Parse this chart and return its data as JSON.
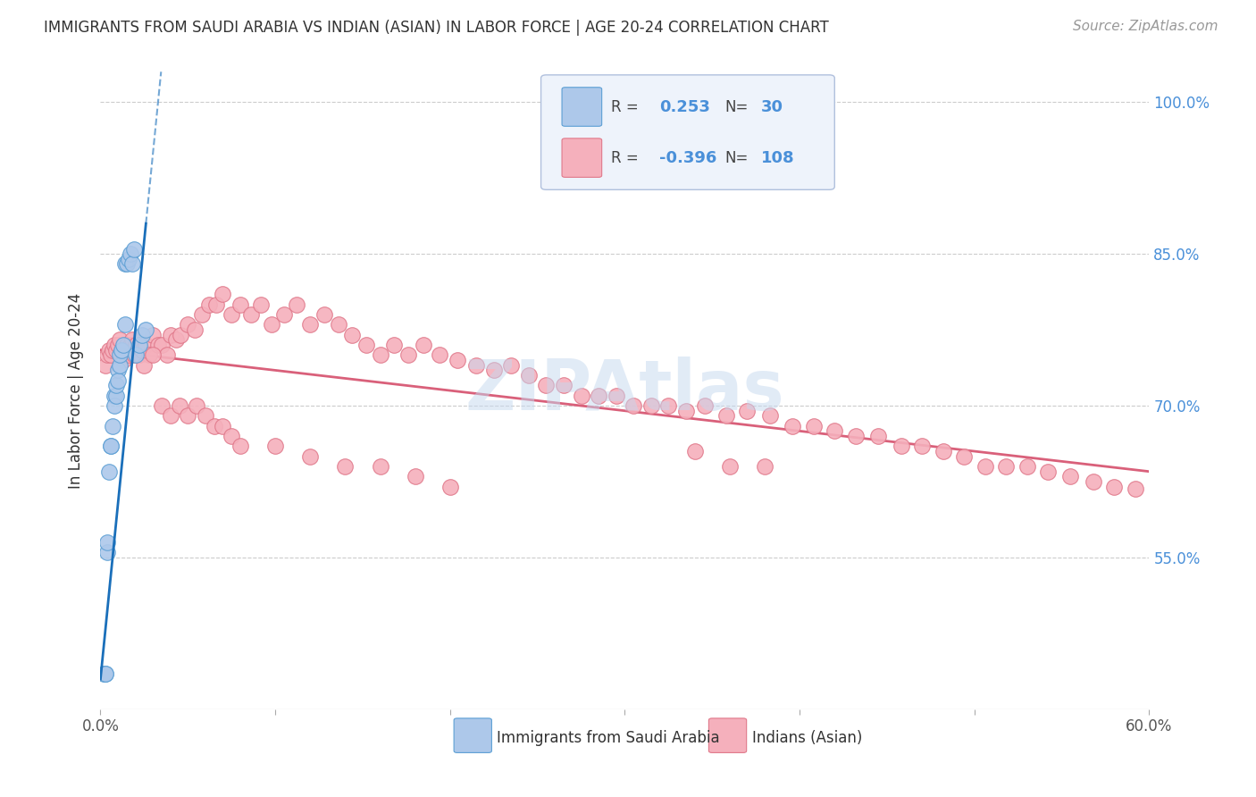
{
  "title": "IMMIGRANTS FROM SAUDI ARABIA VS INDIAN (ASIAN) IN LABOR FORCE | AGE 20-24 CORRELATION CHART",
  "source": "Source: ZipAtlas.com",
  "ylabel": "In Labor Force | Age 20-24",
  "xlim": [
    0.0,
    0.6
  ],
  "ylim": [
    0.4,
    1.03
  ],
  "yticks": [
    0.55,
    0.7,
    0.85,
    1.0
  ],
  "ytick_labels_right": [
    "55.0%",
    "70.0%",
    "85.0%",
    "100.0%"
  ],
  "xtick_positions": [
    0.0,
    0.1,
    0.2,
    0.3,
    0.4,
    0.5,
    0.6
  ],
  "xtick_labels": [
    "0.0%",
    "",
    "",
    "",
    "",
    "",
    "60.0%"
  ],
  "saudi_R": 0.253,
  "saudi_N": 30,
  "indian_R": -0.396,
  "indian_N": 108,
  "saudi_color": "#adc8ea",
  "saudi_edge_color": "#5c9fd4",
  "indian_color": "#f5b0bc",
  "indian_edge_color": "#e0788a",
  "saudi_line_color": "#1a6fba",
  "indian_line_color": "#d9607a",
  "watermark_color": "#c5d8ef",
  "title_color": "#333333",
  "right_tick_color": "#4a90d9",
  "saudi_x": [
    0.002,
    0.003,
    0.003,
    0.004,
    0.004,
    0.005,
    0.006,
    0.006,
    0.007,
    0.008,
    0.008,
    0.009,
    0.009,
    0.01,
    0.01,
    0.011,
    0.011,
    0.012,
    0.013,
    0.014,
    0.014,
    0.015,
    0.016,
    0.017,
    0.018,
    0.019,
    0.02,
    0.022,
    0.024,
    0.026
  ],
  "saudi_y": [
    0.435,
    0.435,
    0.435,
    0.555,
    0.565,
    0.635,
    0.66,
    0.66,
    0.68,
    0.71,
    0.7,
    0.71,
    0.72,
    0.735,
    0.725,
    0.74,
    0.75,
    0.755,
    0.76,
    0.78,
    0.84,
    0.84,
    0.845,
    0.85,
    0.84,
    0.855,
    0.75,
    0.76,
    0.77,
    0.775
  ],
  "indian_x": [
    0.003,
    0.004,
    0.005,
    0.006,
    0.007,
    0.008,
    0.009,
    0.01,
    0.011,
    0.012,
    0.013,
    0.014,
    0.015,
    0.016,
    0.017,
    0.018,
    0.019,
    0.02,
    0.022,
    0.024,
    0.026,
    0.028,
    0.03,
    0.033,
    0.035,
    0.038,
    0.04,
    0.043,
    0.046,
    0.05,
    0.054,
    0.058,
    0.062,
    0.066,
    0.07,
    0.075,
    0.08,
    0.086,
    0.092,
    0.098,
    0.105,
    0.112,
    0.12,
    0.128,
    0.136,
    0.144,
    0.152,
    0.16,
    0.168,
    0.176,
    0.185,
    0.194,
    0.204,
    0.215,
    0.225,
    0.235,
    0.245,
    0.255,
    0.265,
    0.275,
    0.285,
    0.295,
    0.305,
    0.315,
    0.325,
    0.335,
    0.346,
    0.358,
    0.37,
    0.383,
    0.396,
    0.408,
    0.42,
    0.432,
    0.445,
    0.458,
    0.47,
    0.482,
    0.494,
    0.506,
    0.518,
    0.53,
    0.542,
    0.555,
    0.568,
    0.58,
    0.592,
    0.34,
    0.36,
    0.38,
    0.025,
    0.03,
    0.035,
    0.04,
    0.045,
    0.05,
    0.055,
    0.06,
    0.065,
    0.07,
    0.075,
    0.08,
    0.1,
    0.12,
    0.14,
    0.16,
    0.18,
    0.2
  ],
  "indian_y": [
    0.74,
    0.75,
    0.755,
    0.75,
    0.755,
    0.76,
    0.755,
    0.76,
    0.765,
    0.75,
    0.745,
    0.755,
    0.76,
    0.75,
    0.76,
    0.765,
    0.75,
    0.76,
    0.75,
    0.755,
    0.76,
    0.75,
    0.77,
    0.76,
    0.76,
    0.75,
    0.77,
    0.765,
    0.77,
    0.78,
    0.775,
    0.79,
    0.8,
    0.8,
    0.81,
    0.79,
    0.8,
    0.79,
    0.8,
    0.78,
    0.79,
    0.8,
    0.78,
    0.79,
    0.78,
    0.77,
    0.76,
    0.75,
    0.76,
    0.75,
    0.76,
    0.75,
    0.745,
    0.74,
    0.735,
    0.74,
    0.73,
    0.72,
    0.72,
    0.71,
    0.71,
    0.71,
    0.7,
    0.7,
    0.7,
    0.695,
    0.7,
    0.69,
    0.695,
    0.69,
    0.68,
    0.68,
    0.675,
    0.67,
    0.67,
    0.66,
    0.66,
    0.655,
    0.65,
    0.64,
    0.64,
    0.64,
    0.635,
    0.63,
    0.625,
    0.62,
    0.618,
    0.655,
    0.64,
    0.64,
    0.74,
    0.75,
    0.7,
    0.69,
    0.7,
    0.69,
    0.7,
    0.69,
    0.68,
    0.68,
    0.67,
    0.66,
    0.66,
    0.65,
    0.64,
    0.64,
    0.63,
    0.62
  ],
  "saudi_line_x": [
    0.0,
    0.026
  ],
  "saudi_line_y_at_0": 0.43,
  "saudi_line_y_at_026": 0.88,
  "indian_line_x": [
    0.0,
    0.6
  ],
  "indian_line_y_at_0": 0.755,
  "indian_line_y_at_60": 0.635
}
